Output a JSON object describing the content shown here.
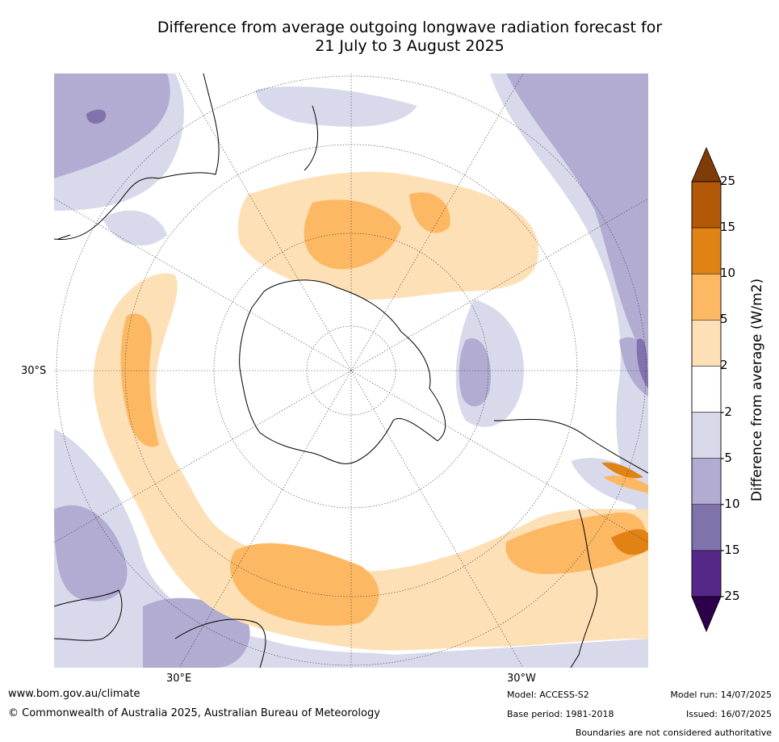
{
  "title_line1": "Difference from average outgoing longwave radiation forecast for",
  "title_line2": "21 July to 3 August 2025",
  "map": {
    "projection": "south-polar-stereographic",
    "labels": {
      "lat": "30°S",
      "lon_left": "30°E",
      "lon_right": "30°W"
    }
  },
  "colorbar": {
    "label": "Difference from average (W/m2)",
    "ticks": [
      "25",
      "15",
      "10",
      "5",
      "2",
      "-2",
      "-5",
      "-10",
      "-15",
      "-25"
    ],
    "bins": [
      {
        "range": [
          15,
          25
        ],
        "color": "#b35806"
      },
      {
        "range": [
          10,
          15
        ],
        "color": "#e08214"
      },
      {
        "range": [
          5,
          10
        ],
        "color": "#fdb863"
      },
      {
        "range": [
          2,
          5
        ],
        "color": "#fee0b6"
      },
      {
        "range": [
          -2,
          2
        ],
        "color": "#ffffff"
      },
      {
        "range": [
          -5,
          -2
        ],
        "color": "#d8daeb"
      },
      {
        "range": [
          -10,
          -5
        ],
        "color": "#b2abd2"
      },
      {
        "range": [
          -15,
          -10
        ],
        "color": "#8073ac"
      },
      {
        "range": [
          -25,
          -15
        ],
        "color": "#542788"
      }
    ],
    "over_color": "#7f3b08",
    "under_color": "#2d004b"
  },
  "footer": {
    "url": "www.bom.gov.au/climate",
    "copyright": "© Commonwealth of Australia 2025, Australian Bureau of Meteorology",
    "model": "Model: ACCESS-S2",
    "base_period": "Base period: 1981-2018",
    "model_run": "Model run: 14/07/2025",
    "issued": "Issued: 16/07/2025",
    "disclaimer": "Boundaries are not considered authoritative"
  }
}
